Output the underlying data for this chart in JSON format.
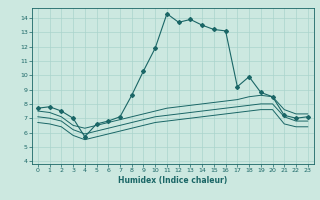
{
  "xlabel": "Humidex (Indice chaleur)",
  "bg_color": "#cce8e0",
  "line_color": "#1a6666",
  "grid_color": "#aad4cc",
  "xlim": [
    -0.5,
    23.5
  ],
  "ylim": [
    3.8,
    14.7
  ],
  "yticks": [
    4,
    5,
    6,
    7,
    8,
    9,
    10,
    11,
    12,
    13,
    14
  ],
  "xticks": [
    0,
    1,
    2,
    3,
    4,
    5,
    6,
    7,
    8,
    9,
    10,
    11,
    12,
    13,
    14,
    15,
    16,
    17,
    18,
    19,
    20,
    21,
    22,
    23
  ],
  "s1_x": [
    0,
    1,
    2,
    3,
    4,
    5,
    6,
    7,
    8,
    9,
    10,
    11,
    12,
    13,
    14,
    15,
    16,
    17,
    18,
    19,
    20,
    21,
    22,
    23
  ],
  "s1_y": [
    7.7,
    7.8,
    7.5,
    7.0,
    5.7,
    6.6,
    6.8,
    7.1,
    8.6,
    10.3,
    11.9,
    14.3,
    13.7,
    13.9,
    13.5,
    13.2,
    13.1,
    9.2,
    9.9,
    8.8,
    8.5,
    7.2,
    7.0,
    7.1
  ],
  "s2_x": [
    0,
    1,
    2,
    3,
    4,
    5,
    6,
    7,
    8,
    9,
    10,
    11,
    12,
    13,
    14,
    15,
    16,
    17,
    18,
    19,
    20,
    21,
    22,
    23
  ],
  "s2_y": [
    7.5,
    7.4,
    7.1,
    6.5,
    6.3,
    6.5,
    6.7,
    6.9,
    7.1,
    7.3,
    7.5,
    7.7,
    7.8,
    7.9,
    8.0,
    8.1,
    8.2,
    8.3,
    8.5,
    8.6,
    8.5,
    7.6,
    7.3,
    7.3
  ],
  "s3_x": [
    0,
    1,
    2,
    3,
    4,
    5,
    6,
    7,
    8,
    9,
    10,
    11,
    12,
    13,
    14,
    15,
    16,
    17,
    18,
    19,
    20,
    21,
    22,
    23
  ],
  "s3_y": [
    7.1,
    7.0,
    6.8,
    6.2,
    5.9,
    6.1,
    6.3,
    6.5,
    6.7,
    6.9,
    7.1,
    7.2,
    7.3,
    7.4,
    7.5,
    7.6,
    7.7,
    7.8,
    7.9,
    8.0,
    8.0,
    7.1,
    6.8,
    6.8
  ],
  "s4_x": [
    0,
    1,
    2,
    3,
    4,
    5,
    6,
    7,
    8,
    9,
    10,
    11,
    12,
    13,
    14,
    15,
    16,
    17,
    18,
    19,
    20,
    21,
    22,
    23
  ],
  "s4_y": [
    6.7,
    6.6,
    6.4,
    5.8,
    5.5,
    5.7,
    5.9,
    6.1,
    6.3,
    6.5,
    6.7,
    6.8,
    6.9,
    7.0,
    7.1,
    7.2,
    7.3,
    7.4,
    7.5,
    7.6,
    7.6,
    6.6,
    6.4,
    6.4
  ]
}
